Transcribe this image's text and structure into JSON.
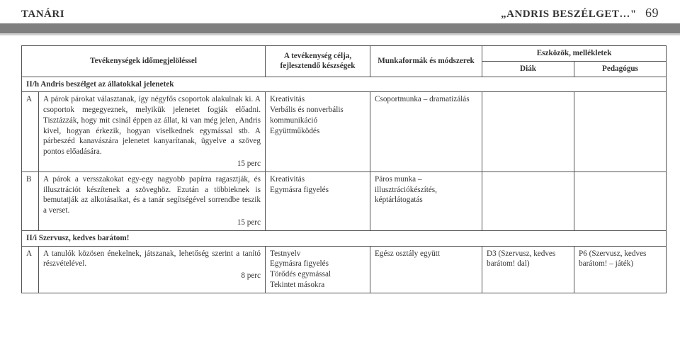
{
  "header": {
    "left": "TANÁRI",
    "right_title": "„ANDRIS BESZÉLGET…\"",
    "page_number": "69"
  },
  "table": {
    "columns": {
      "tevekenyseg": "Tevékenységek időmegjelöléssel",
      "cel": "A tevékenység célja, fejlesztendő készségek",
      "munkaforma": "Munkaformák és módszerek",
      "eszkozok": "Eszközök, mellékletek",
      "diak": "Diák",
      "pedagogus": "Pedagógus"
    }
  },
  "section_h": {
    "title": "II/h Andris beszélget az állatokkal jelenetek",
    "row_a": {
      "letter": "A",
      "desc": "A párok párokat választanak, így négyfős csoportok alakulnak ki. A csoportok megegyeznek, melyikük jelenetet fogják előadni. Tisztázzák, hogy mit csinál éppen az állat, ki van még jelen, Andris kivel, hogyan érkezik, hogyan viselkednek egymással stb. A párbeszéd kanavászára jelenetet kanyarítanak, ügyelve a szöveg pontos előadására.",
      "timing": "15 perc",
      "goal": "Kreativitás\nVerbális és nonverbális kommunikáció\nEgyüttműködés",
      "form": "Csoportmunka – dramatizálás",
      "diak": "",
      "peda": ""
    },
    "row_b": {
      "letter": "B",
      "desc": "A párok a versszakokat egy-egy nagyobb papírra ragasztják, és illusztrációt készítenek a szöveghöz. Ezután a többieknek is bemutatják az alkotásaikat, és a tanár segítségével sorrendbe teszik a verset.",
      "timing": "15 perc",
      "goal": "Kreativitás\nEgymásra figyelés",
      "form": "Páros munka – illusztrációkészítés, képtárlátogatás",
      "diak": "",
      "peda": ""
    }
  },
  "section_i": {
    "title": "II/i Szervusz, kedves barátom!",
    "row_a": {
      "letter": "A",
      "desc": "A tanulók közösen énekelnek, játszanak, lehetőség szerint a tanító részvételével.",
      "timing": "8 perc",
      "goal": "Testnyelv\nEgymásra figyelés\nTörődés egymással\nTekintet másokra",
      "form": "Egész osztály együtt",
      "diak": "D3 (Szervusz, kedves barátom! dal)",
      "peda": "P6 (Szervusz, kedves barátom! – játék)"
    }
  }
}
